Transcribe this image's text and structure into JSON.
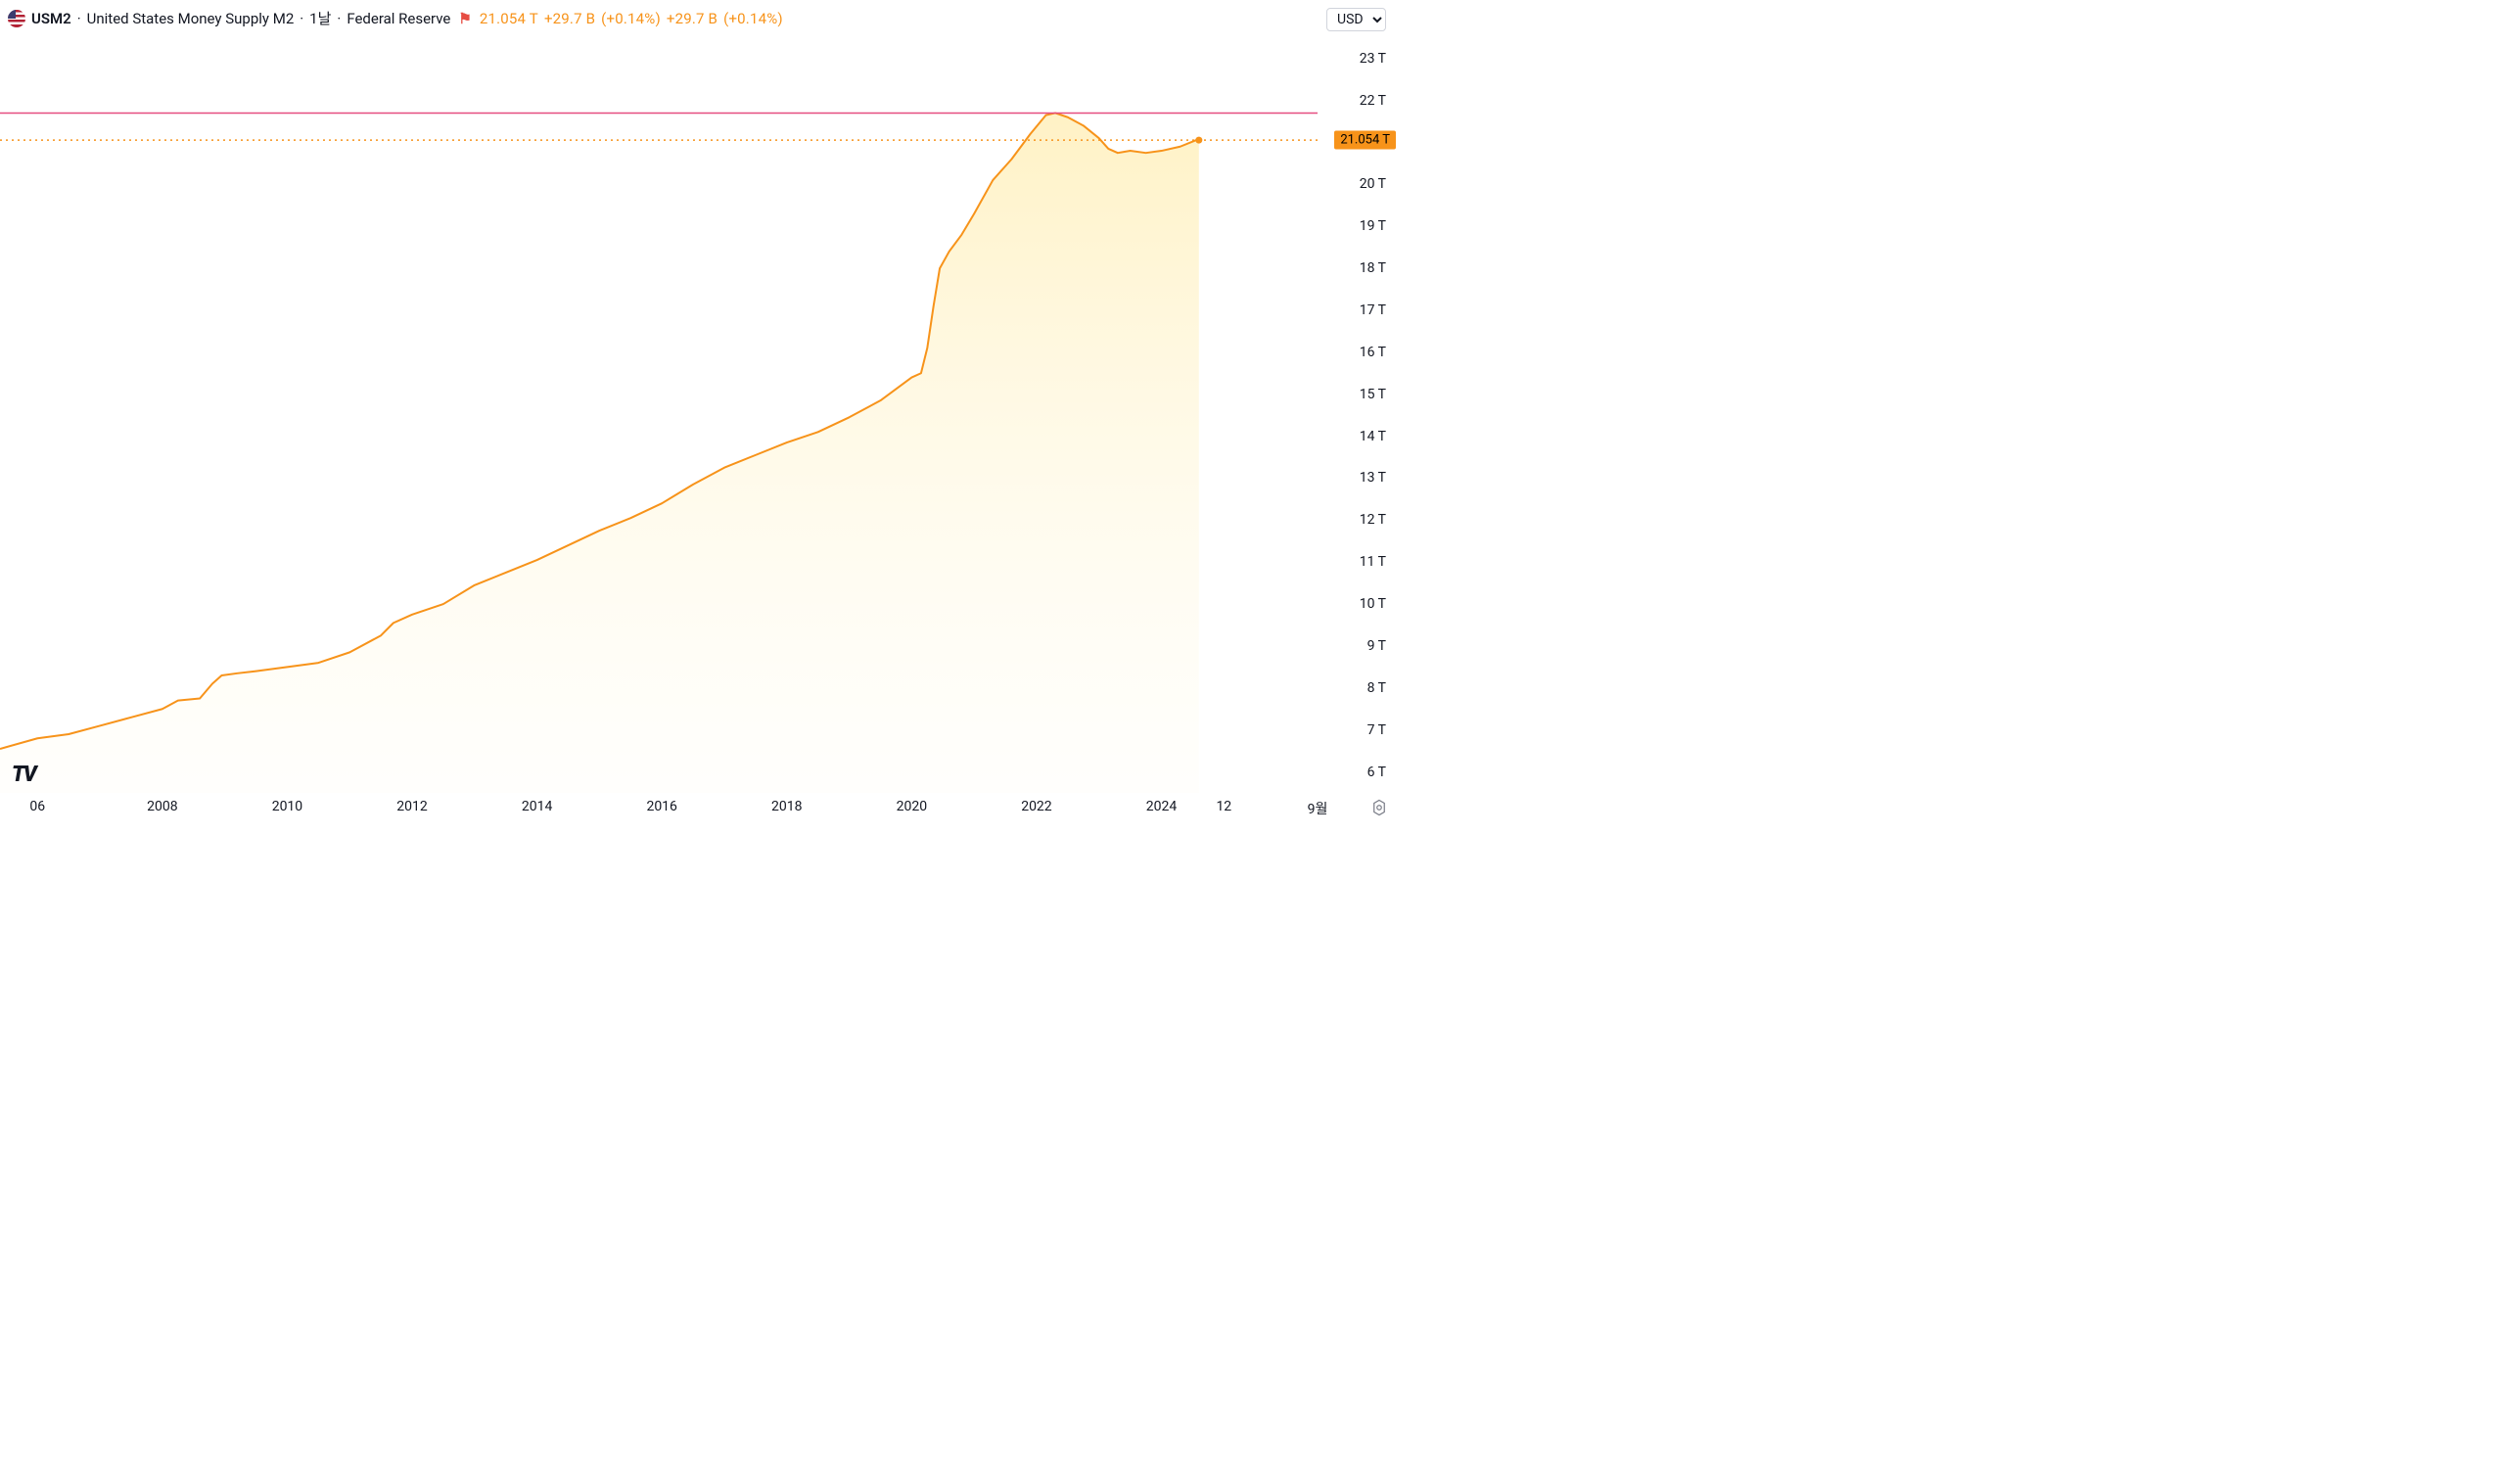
{
  "header": {
    "symbol": "USM2",
    "dot": "·",
    "description": "United States Money Supply M2",
    "interval": "1날",
    "source": "Federal Reserve",
    "flag_glyph": "⚑",
    "last": "21.054 T",
    "chg_abs": "+29.7 B",
    "chg_pct": "(+0.14%)",
    "chg_abs2": "+29.7 B",
    "chg_pct2": "(+0.14%)",
    "text_color": "#f7931a"
  },
  "currency": {
    "selected": "USD"
  },
  "chart": {
    "type": "area",
    "line_color": "#f7931a",
    "line_width": 2,
    "fill_top": "#fff1c2",
    "fill_bottom": "#fffdf5",
    "background": "#ffffff",
    "alert_line_color": "#e64d80",
    "alert_line_value": 21.7,
    "current_dotted_color": "#f7931a",
    "current_value": 21.054,
    "current_badge": "21.054 T",
    "x": {
      "min": 2005.4,
      "max": 2026.5,
      "ticks": [
        {
          "v": 2006,
          "l": "06"
        },
        {
          "v": 2008,
          "l": "2008"
        },
        {
          "v": 2010,
          "l": "2010"
        },
        {
          "v": 2012,
          "l": "2012"
        },
        {
          "v": 2014,
          "l": "2014"
        },
        {
          "v": 2016,
          "l": "2016"
        },
        {
          "v": 2018,
          "l": "2018"
        },
        {
          "v": 2020,
          "l": "2020"
        },
        {
          "v": 2022,
          "l": "2022"
        },
        {
          "v": 2024,
          "l": "2024"
        },
        {
          "v": 2025,
          "l": "12"
        }
      ],
      "month_label": "9월"
    },
    "y": {
      "min": 5.5,
      "max": 23.6,
      "ticks": [
        {
          "v": 6,
          "l": "6 T"
        },
        {
          "v": 7,
          "l": "7 T"
        },
        {
          "v": 8,
          "l": "8 T"
        },
        {
          "v": 9,
          "l": "9 T"
        },
        {
          "v": 10,
          "l": "10 T"
        },
        {
          "v": 11,
          "l": "11 T"
        },
        {
          "v": 12,
          "l": "12 T"
        },
        {
          "v": 13,
          "l": "13 T"
        },
        {
          "v": 14,
          "l": "14 T"
        },
        {
          "v": 15,
          "l": "15 T"
        },
        {
          "v": 16,
          "l": "16 T"
        },
        {
          "v": 17,
          "l": "17 T"
        },
        {
          "v": 18,
          "l": "18 T"
        },
        {
          "v": 19,
          "l": "19 T"
        },
        {
          "v": 20,
          "l": "20 T"
        },
        {
          "v": 21,
          "l": "21 T"
        },
        {
          "v": 22,
          "l": "22 T"
        },
        {
          "v": 23,
          "l": "23 T"
        }
      ]
    },
    "series": [
      {
        "x": 2005.4,
        "y": 6.55
      },
      {
        "x": 2006,
        "y": 6.8
      },
      {
        "x": 2006.5,
        "y": 6.9
      },
      {
        "x": 2007,
        "y": 7.1
      },
      {
        "x": 2007.5,
        "y": 7.3
      },
      {
        "x": 2008,
        "y": 7.5
      },
      {
        "x": 2008.25,
        "y": 7.7
      },
      {
        "x": 2008.6,
        "y": 7.75
      },
      {
        "x": 2008.8,
        "y": 8.1
      },
      {
        "x": 2008.95,
        "y": 8.3
      },
      {
        "x": 2009.2,
        "y": 8.35
      },
      {
        "x": 2009.5,
        "y": 8.4
      },
      {
        "x": 2010,
        "y": 8.5
      },
      {
        "x": 2010.5,
        "y": 8.6
      },
      {
        "x": 2011,
        "y": 8.85
      },
      {
        "x": 2011.5,
        "y": 9.25
      },
      {
        "x": 2011.7,
        "y": 9.55
      },
      {
        "x": 2012,
        "y": 9.75
      },
      {
        "x": 2012.5,
        "y": 10.0
      },
      {
        "x": 2013,
        "y": 10.45
      },
      {
        "x": 2013.5,
        "y": 10.75
      },
      {
        "x": 2014,
        "y": 11.05
      },
      {
        "x": 2014.5,
        "y": 11.4
      },
      {
        "x": 2015,
        "y": 11.75
      },
      {
        "x": 2015.5,
        "y": 12.05
      },
      {
        "x": 2016,
        "y": 12.4
      },
      {
        "x": 2016.5,
        "y": 12.85
      },
      {
        "x": 2017,
        "y": 13.25
      },
      {
        "x": 2017.5,
        "y": 13.55
      },
      {
        "x": 2018,
        "y": 13.85
      },
      {
        "x": 2018.5,
        "y": 14.1
      },
      {
        "x": 2019,
        "y": 14.45
      },
      {
        "x": 2019.5,
        "y": 14.85
      },
      {
        "x": 2020,
        "y": 15.4
      },
      {
        "x": 2020.15,
        "y": 15.5
      },
      {
        "x": 2020.25,
        "y": 16.1
      },
      {
        "x": 2020.35,
        "y": 17.1
      },
      {
        "x": 2020.45,
        "y": 18.0
      },
      {
        "x": 2020.6,
        "y": 18.4
      },
      {
        "x": 2020.8,
        "y": 18.8
      },
      {
        "x": 2021,
        "y": 19.3
      },
      {
        "x": 2021.3,
        "y": 20.1
      },
      {
        "x": 2021.6,
        "y": 20.6
      },
      {
        "x": 2021.9,
        "y": 21.2
      },
      {
        "x": 2022.15,
        "y": 21.65
      },
      {
        "x": 2022.3,
        "y": 21.7
      },
      {
        "x": 2022.5,
        "y": 21.6
      },
      {
        "x": 2022.75,
        "y": 21.4
      },
      {
        "x": 2023,
        "y": 21.1
      },
      {
        "x": 2023.15,
        "y": 20.85
      },
      {
        "x": 2023.3,
        "y": 20.75
      },
      {
        "x": 2023.5,
        "y": 20.8
      },
      {
        "x": 2023.75,
        "y": 20.75
      },
      {
        "x": 2024,
        "y": 20.8
      },
      {
        "x": 2024.3,
        "y": 20.9
      },
      {
        "x": 2024.55,
        "y": 21.05
      },
      {
        "x": 2024.6,
        "y": 21.054
      }
    ]
  },
  "logo": "TV"
}
